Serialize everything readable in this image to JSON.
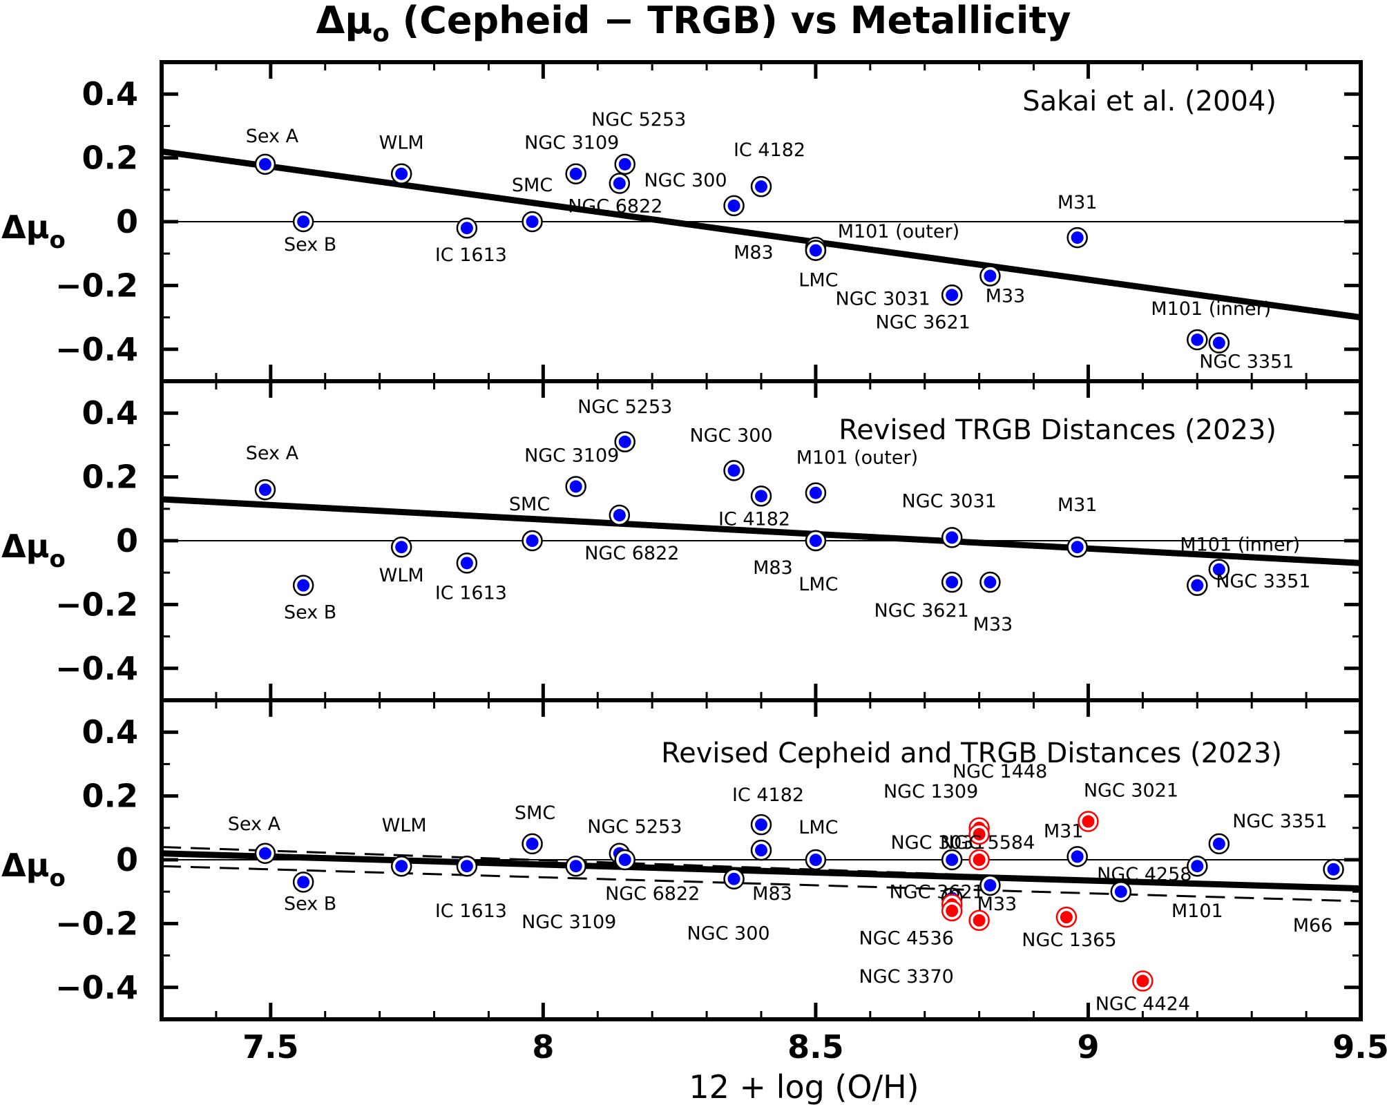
{
  "chart_data": {
    "type": "scatter",
    "title": {
      "prefix": "Δμ",
      "sub": "o",
      "suffix": " (Cepheid − TRGB) vs Metallicity"
    },
    "xlabel": "12 + log (O/H)",
    "ylabel": {
      "main": "Δμ",
      "sub": "o"
    },
    "xlim": [
      7.3,
      9.5
    ],
    "ylim": [
      -0.5,
      0.5
    ],
    "xticks": {
      "values": [
        7.5,
        8,
        8.5,
        9,
        9.5
      ],
      "labels": [
        "7.5",
        "8",
        "8.5",
        "9",
        "9.5"
      ]
    },
    "yticks": {
      "values": [
        0.4,
        0.2,
        0,
        -0.2,
        -0.4
      ],
      "labels": [
        "0.4",
        "0.2",
        "0",
        "−0.2",
        "−0.4"
      ]
    },
    "grid": false,
    "colors": {
      "blue": "#0000ff",
      "red": "#ff0000",
      "axis": "#000000"
    },
    "panels": [
      {
        "title": "Sakai et al. (2004)",
        "fit": {
          "x": [
            7.3,
            9.5
          ],
          "y": [
            0.22,
            -0.3
          ],
          "style": "solid"
        },
        "points": [
          {
            "label": "Sex A",
            "x": 7.49,
            "y": 0.18,
            "color": "blue"
          },
          {
            "label": "Sex B",
            "x": 7.56,
            "y": 0.0,
            "color": "blue"
          },
          {
            "label": "WLM",
            "x": 7.74,
            "y": 0.15,
            "color": "blue"
          },
          {
            "label": "IC 1613",
            "x": 7.86,
            "y": -0.02,
            "color": "blue"
          },
          {
            "label": "SMC",
            "x": 7.98,
            "y": 0.0,
            "color": "blue"
          },
          {
            "label": "NGC 3109",
            "x": 8.06,
            "y": 0.15,
            "color": "blue"
          },
          {
            "label": "NGC 6822",
            "x": 8.14,
            "y": 0.12,
            "color": "blue"
          },
          {
            "label": "NGC 5253",
            "x": 8.15,
            "y": 0.18,
            "color": "blue"
          },
          {
            "label": "NGC 300",
            "x": 8.35,
            "y": 0.05,
            "color": "blue"
          },
          {
            "label": "IC 4182",
            "x": 8.4,
            "y": 0.11,
            "color": "blue"
          },
          {
            "label": "M101 (outer)",
            "x": 8.5,
            "y": -0.08,
            "color": "blue"
          },
          {
            "label": "M83",
            "x": 8.5,
            "y": -0.09,
            "color": "blue"
          },
          {
            "label": "LMC",
            "x": 8.5,
            "y": -0.09,
            "color": "blue"
          },
          {
            "label": "NGC 3031",
            "x": 8.75,
            "y": -0.23,
            "color": "blue"
          },
          {
            "label": "NGC 3621",
            "x": 8.75,
            "y": -0.23,
            "color": "blue"
          },
          {
            "label": "M33",
            "x": 8.82,
            "y": -0.17,
            "color": "blue"
          },
          {
            "label": "M31",
            "x": 8.98,
            "y": -0.05,
            "color": "blue"
          },
          {
            "label": "M101 (inner)",
            "x": 9.2,
            "y": -0.37,
            "color": "blue"
          },
          {
            "label": "NGC 3351",
            "x": 9.24,
            "y": -0.38,
            "color": "blue"
          }
        ]
      },
      {
        "title": "Revised TRGB Distances (2023)",
        "fit": {
          "x": [
            7.3,
            9.5
          ],
          "y": [
            0.13,
            -0.07
          ],
          "style": "solid"
        },
        "points": [
          {
            "label": "Sex A",
            "x": 7.49,
            "y": 0.16,
            "color": "blue"
          },
          {
            "label": "Sex B",
            "x": 7.56,
            "y": -0.14,
            "color": "blue"
          },
          {
            "label": "WLM",
            "x": 7.74,
            "y": -0.02,
            "color": "blue"
          },
          {
            "label": "IC 1613",
            "x": 7.86,
            "y": -0.07,
            "color": "blue"
          },
          {
            "label": "SMC",
            "x": 7.98,
            "y": 0.0,
            "color": "blue"
          },
          {
            "label": "NGC 3109",
            "x": 8.06,
            "y": 0.17,
            "color": "blue"
          },
          {
            "label": "NGC 6822",
            "x": 8.14,
            "y": 0.08,
            "color": "blue"
          },
          {
            "label": "NGC 5253",
            "x": 8.15,
            "y": 0.31,
            "color": "blue"
          },
          {
            "label": "NGC 300",
            "x": 8.35,
            "y": 0.22,
            "color": "blue"
          },
          {
            "label": "IC 4182",
            "x": 8.4,
            "y": 0.14,
            "color": "blue"
          },
          {
            "label": "M101 (outer)",
            "x": 8.5,
            "y": 0.15,
            "color": "blue"
          },
          {
            "label": "M83",
            "x": 8.5,
            "y": 0.0,
            "color": "blue"
          },
          {
            "label": "LMC",
            "x": 8.5,
            "y": 0.0,
            "color": "blue"
          },
          {
            "label": "NGC 3031",
            "x": 8.75,
            "y": 0.01,
            "color": "blue"
          },
          {
            "label": "NGC 3621",
            "x": 8.75,
            "y": -0.13,
            "color": "blue"
          },
          {
            "label": "M33",
            "x": 8.82,
            "y": -0.13,
            "color": "blue"
          },
          {
            "label": "M31",
            "x": 8.98,
            "y": -0.02,
            "color": "blue"
          },
          {
            "label": "M101 (inner)",
            "x": 9.2,
            "y": -0.14,
            "color": "blue"
          },
          {
            "label": "NGC 3351",
            "x": 9.24,
            "y": -0.09,
            "color": "blue"
          }
        ]
      },
      {
        "title": "Revised Cepheid and TRGB Distances (2023)",
        "fit": {
          "x": [
            7.3,
            9.5
          ],
          "y": [
            0.02,
            -0.09
          ],
          "style": "solid"
        },
        "fit_bounds": [
          {
            "x": [
              7.3,
              9.5
            ],
            "y": [
              0.04,
              -0.09
            ],
            "style": "dashed"
          },
          {
            "x": [
              7.3,
              9.5
            ],
            "y": [
              -0.02,
              -0.13
            ],
            "style": "dashed"
          }
        ],
        "points": [
          {
            "label": "Sex A",
            "x": 7.49,
            "y": 0.02,
            "color": "blue"
          },
          {
            "label": "Sex B",
            "x": 7.56,
            "y": -0.07,
            "color": "blue"
          },
          {
            "label": "WLM",
            "x": 7.74,
            "y": -0.02,
            "color": "blue"
          },
          {
            "label": "IC 1613",
            "x": 7.86,
            "y": -0.02,
            "color": "blue"
          },
          {
            "label": "SMC",
            "x": 7.98,
            "y": 0.05,
            "color": "blue"
          },
          {
            "label": "NGC 3109",
            "x": 8.06,
            "y": -0.02,
            "color": "blue"
          },
          {
            "label": "NGC 5253",
            "x": 8.14,
            "y": 0.02,
            "color": "blue"
          },
          {
            "label": "NGC 6822",
            "x": 8.15,
            "y": 0.0,
            "color": "blue"
          },
          {
            "label": "NGC 300",
            "x": 8.35,
            "y": -0.06,
            "color": "blue"
          },
          {
            "label": "IC 4182",
            "x": 8.4,
            "y": 0.11,
            "color": "blue"
          },
          {
            "label": "M83",
            "x": 8.4,
            "y": 0.03,
            "color": "blue"
          },
          {
            "label": "LMC",
            "x": 8.5,
            "y": 0.0,
            "color": "blue"
          },
          {
            "label": "NGC 3031",
            "x": 8.75,
            "y": 0.0,
            "color": "blue"
          },
          {
            "label": "NGC 3621",
            "x": 8.75,
            "y": -0.12,
            "color": "blue"
          },
          {
            "label": "NGC 4536",
            "x": 8.75,
            "y": -0.14,
            "color": "red"
          },
          {
            "label": "NGC 3370",
            "x": 8.75,
            "y": -0.16,
            "color": "red"
          },
          {
            "label": "NGC 1309",
            "x": 8.8,
            "y": 0.1,
            "color": "red"
          },
          {
            "label": "NGC 1448",
            "x": 8.8,
            "y": 0.08,
            "color": "red"
          },
          {
            "label": "NGC 5584",
            "x": 8.8,
            "y": 0.0,
            "color": "red"
          },
          {
            "label": "",
            "x": 8.8,
            "y": -0.19,
            "color": "red"
          },
          {
            "label": "M33",
            "x": 8.82,
            "y": -0.08,
            "color": "blue"
          },
          {
            "label": "NGC 1365",
            "x": 8.96,
            "y": -0.18,
            "color": "red"
          },
          {
            "label": "M31",
            "x": 8.98,
            "y": 0.01,
            "color": "blue"
          },
          {
            "label": "NGC 3021",
            "x": 9.0,
            "y": 0.12,
            "color": "red"
          },
          {
            "label": "NGC 4258",
            "x": 9.06,
            "y": -0.1,
            "color": "blue"
          },
          {
            "label": "NGC 4424",
            "x": 9.1,
            "y": -0.38,
            "color": "red"
          },
          {
            "label": "M101",
            "x": 9.2,
            "y": -0.02,
            "color": "blue"
          },
          {
            "label": "NGC 3351",
            "x": 9.24,
            "y": 0.05,
            "color": "blue"
          },
          {
            "label": "M66",
            "x": 9.45,
            "y": -0.03,
            "color": "blue"
          }
        ]
      }
    ]
  }
}
